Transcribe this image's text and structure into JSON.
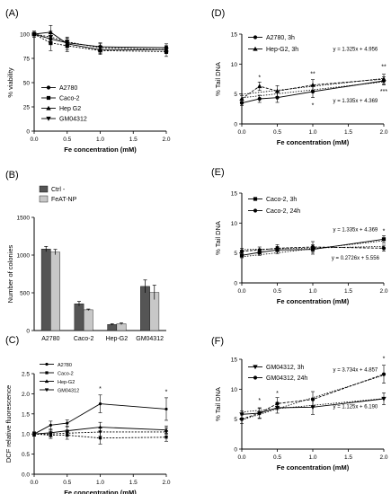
{
  "panels": [
    {
      "label": "(A)"
    },
    {
      "label": "(B)"
    },
    {
      "label": "(C)"
    },
    {
      "label": "(D)"
    },
    {
      "label": "(E)"
    },
    {
      "label": "(F)"
    }
  ],
  "chart_data": [
    {
      "id": "A",
      "type": "line",
      "panel_label": "(A)",
      "xlabel": "Fe concentration (mM)",
      "ylabel": "% viability",
      "xlim": [
        0,
        2
      ],
      "ylim": [
        0,
        100
      ],
      "xticks": [
        "0.0",
        "0.5",
        "1.0",
        "1.5",
        "2.0"
      ],
      "yticks": [
        "0",
        "25",
        "50",
        "75",
        "100"
      ],
      "legend_position": "middle",
      "series": [
        {
          "name": "A2780",
          "marker": "circle",
          "x": [
            0,
            0.25,
            0.5,
            1,
            2
          ],
          "y": [
            100,
            95,
            91,
            87,
            86
          ],
          "err": [
            3,
            6,
            5,
            4,
            4
          ]
        },
        {
          "name": "Caco-2",
          "marker": "square",
          "x": [
            0,
            0.25,
            0.5,
            1,
            2
          ],
          "y": [
            100,
            91,
            88,
            83,
            82
          ],
          "err": [
            3,
            8,
            6,
            4,
            5
          ]
        },
        {
          "name": "Hep G2",
          "marker": "triangle-up",
          "x": [
            0,
            0.25,
            0.5,
            1,
            2
          ],
          "y": [
            100,
            102,
            90,
            84,
            84
          ],
          "err": [
            3,
            7,
            6,
            4,
            4
          ]
        },
        {
          "name": "GM04312",
          "marker": "triangle-down",
          "x": [
            0,
            0.25,
            0.5,
            1,
            2
          ],
          "y": [
            100,
            97,
            92,
            86,
            84
          ],
          "err": [
            3,
            6,
            5,
            4,
            4
          ]
        }
      ]
    },
    {
      "id": "B",
      "type": "bar",
      "panel_label": "(B)",
      "xlabel": "",
      "ylabel": "Number of colonies",
      "ylim": [
        0,
        1500
      ],
      "yticks": [
        "0",
        "500",
        "1000",
        "1500"
      ],
      "categories": [
        "A2780",
        "Caco-2",
        "Hep-G2",
        "GM04312"
      ],
      "legend_position": "top-left",
      "series": [
        {
          "name": "Ctrl -",
          "color": "#555555",
          "values": [
            1080,
            355,
            80,
            585
          ],
          "err": [
            35,
            30,
            10,
            85
          ]
        },
        {
          "name": "FeAT-NP",
          "color": "#c8c8c8",
          "values": [
            1040,
            275,
            90,
            505
          ],
          "err": [
            35,
            10,
            12,
            95
          ]
        }
      ]
    },
    {
      "id": "C",
      "type": "line",
      "panel_label": "(C)",
      "xlabel": "Fe concentration (mM)",
      "ylabel": "DCF relative fluorescence",
      "xlim": [
        0,
        2
      ],
      "ylim": [
        0,
        2.5
      ],
      "xticks": [
        "0.0",
        "0.5",
        "1.0",
        "1.5",
        "2.0"
      ],
      "yticks": [
        "0.0",
        "0.5",
        "1.0",
        "1.5",
        "2.0",
        "2.5"
      ],
      "legend_position": "top-left",
      "annotations": [
        {
          "x": 1,
          "y": 2.08,
          "text": "*"
        },
        {
          "x": 2,
          "y": 2.0,
          "text": "*"
        }
      ],
      "series": [
        {
          "name": "A2780",
          "marker": "circle",
          "x": [
            0,
            0.25,
            0.5,
            1,
            2
          ],
          "y": [
            1.0,
            1.22,
            1.27,
            1.75,
            1.62
          ],
          "err": [
            0.05,
            0.1,
            0.08,
            0.22,
            0.28
          ]
        },
        {
          "name": "Caco-2",
          "marker": "square",
          "x": [
            0,
            0.25,
            0.5,
            1,
            2
          ],
          "y": [
            1.0,
            0.97,
            0.97,
            0.9,
            0.92
          ],
          "err": [
            0.05,
            0.08,
            0.1,
            0.15,
            0.1
          ]
        },
        {
          "name": "Hep-G2",
          "marker": "triangle-up",
          "x": [
            0,
            0.25,
            0.5,
            1,
            2
          ],
          "y": [
            1.0,
            1.03,
            1.08,
            1.17,
            1.1
          ],
          "err": [
            0.05,
            0.08,
            0.1,
            0.12,
            0.1
          ]
        },
        {
          "name": "GM04312",
          "marker": "triangle-down",
          "x": [
            0,
            0.25,
            0.5,
            1,
            2
          ],
          "y": [
            1.0,
            1.0,
            1.02,
            1.05,
            1.05
          ],
          "err": [
            0.05,
            0.07,
            0.08,
            0.1,
            0.1
          ]
        }
      ]
    },
    {
      "id": "D",
      "type": "line",
      "panel_label": "(D)",
      "xlabel": "Fe concentration (mM)",
      "ylabel": "% Tail DNA",
      "xlim": [
        0,
        2
      ],
      "ylim": [
        0,
        15
      ],
      "xticks": [
        "0.0",
        "0.5",
        "1.0",
        "1.5",
        "2.0"
      ],
      "yticks": [
        "0",
        "5",
        "10",
        "15"
      ],
      "legend_position": "top-left",
      "annotations": [
        {
          "x": 0.25,
          "y": 7.4,
          "text": "*"
        },
        {
          "x": 1,
          "y": 8.0,
          "text": "**"
        },
        {
          "x": 1,
          "y": 2.8,
          "text": "*"
        },
        {
          "x": 2,
          "y": 9.2,
          "text": "**"
        },
        {
          "x": 2,
          "y": 5.1,
          "text": "***"
        },
        {
          "x": 1.6,
          "y": 12.2,
          "text": "y = 1.325x + 4.956"
        },
        {
          "x": 1.6,
          "y": 3.6,
          "text": "y = 1.335x + 4.369"
        }
      ],
      "series": [
        {
          "name": "A2780, 3h",
          "marker": "circle",
          "x": [
            0,
            0.25,
            0.5,
            1,
            2
          ],
          "y": [
            3.5,
            4.2,
            4.4,
            5.4,
            7.2
          ],
          "err": [
            0.4,
            0.6,
            0.8,
            1.0,
            0.7
          ],
          "fit": [
            1.335,
            4.369
          ]
        },
        {
          "name": "Hep-G2, 3h",
          "marker": "triangle-up",
          "x": [
            0,
            0.25,
            0.5,
            1,
            2
          ],
          "y": [
            4.2,
            6.3,
            5.5,
            6.5,
            7.5
          ],
          "err": [
            0.5,
            0.7,
            0.9,
            0.9,
            0.8
          ],
          "fit": [
            1.325,
            4.956
          ]
        }
      ]
    },
    {
      "id": "E",
      "type": "line",
      "panel_label": "(E)",
      "xlabel": "Fe concentration (mM)",
      "ylabel": "% Tail DNA",
      "xlim": [
        0,
        2
      ],
      "ylim": [
        0,
        15
      ],
      "xticks": [
        "0.0",
        "0.5",
        "1.0",
        "1.5",
        "2.0"
      ],
      "yticks": [
        "0",
        "5",
        "10",
        "15"
      ],
      "legend_position": "top-left",
      "annotations": [
        {
          "x": 2,
          "y": 8.3,
          "text": "*"
        },
        {
          "x": 1.6,
          "y": 8.6,
          "text": "y = 1.335x + 4.369"
        },
        {
          "x": 1.6,
          "y": 3.9,
          "text": "y = 0.2726x + 5.556"
        }
      ],
      "series": [
        {
          "name": "Caco-2, 3h",
          "marker": "square",
          "x": [
            0,
            0.25,
            0.5,
            1,
            2
          ],
          "y": [
            4.6,
            5.1,
            5.5,
            5.6,
            7.3
          ],
          "err": [
            0.4,
            0.5,
            0.6,
            0.8,
            0.6
          ],
          "fit": [
            1.335,
            4.369
          ]
        },
        {
          "name": "Caco-2, 24h",
          "marker": "circle",
          "x": [
            0,
            0.25,
            0.5,
            1,
            2
          ],
          "y": [
            5.3,
            5.5,
            5.8,
            6.0,
            5.8
          ],
          "err": [
            0.5,
            0.5,
            0.6,
            0.9,
            0.5
          ],
          "fit": [
            0.2726,
            5.556
          ]
        }
      ]
    },
    {
      "id": "F",
      "type": "line",
      "panel_label": "(F)",
      "xlabel": "Fe concentration (mM)",
      "ylabel": "% Tail DNA",
      "xlim": [
        0,
        2
      ],
      "ylim": [
        0,
        15
      ],
      "xticks": [
        "0.0",
        "0.5",
        "1.0",
        "1.5",
        "2.0"
      ],
      "yticks": [
        "0",
        "5",
        "10",
        "15"
      ],
      "legend_position": "top-left",
      "annotations": [
        {
          "x": 0.25,
          "y": 7.8,
          "text": "*"
        },
        {
          "x": 0.5,
          "y": 9.0,
          "text": "*"
        },
        {
          "x": 2,
          "y": 14.8,
          "text": "*"
        },
        {
          "x": 1.6,
          "y": 13.0,
          "text": "y = 3.734x + 4.857"
        },
        {
          "x": 1.6,
          "y": 6.8,
          "text": "y = 1.125x + 6.190"
        }
      ],
      "series": [
        {
          "name": "GM04312, 3h",
          "marker": "triangle-down",
          "x": [
            0,
            0.25,
            0.5,
            1,
            2
          ],
          "y": [
            5.8,
            6.0,
            6.9,
            7.0,
            8.4
          ],
          "err": [
            0.6,
            0.8,
            0.9,
            1.2,
            1.0
          ],
          "fit": [
            1.125,
            6.19
          ]
        },
        {
          "name": "GM04312, 24h",
          "marker": "circle",
          "x": [
            0,
            0.25,
            0.5,
            1,
            2
          ],
          "y": [
            5.0,
            6.0,
            7.6,
            8.3,
            12.5
          ],
          "err": [
            0.7,
            0.9,
            1.0,
            1.3,
            1.5
          ],
          "fit": [
            3.734,
            4.857
          ]
        }
      ]
    }
  ]
}
